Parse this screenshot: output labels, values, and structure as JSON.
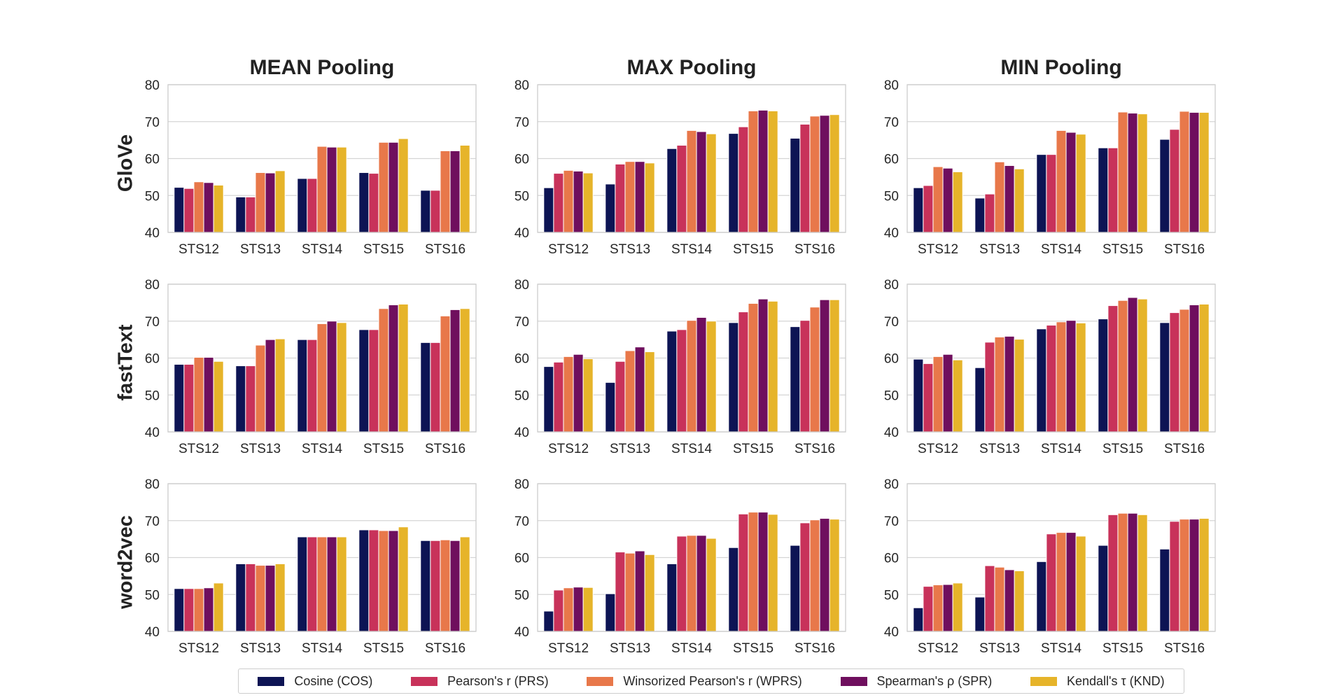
{
  "colors": {
    "COS": "#0d1454",
    "PRS": "#c8325a",
    "WPRS": "#e8784a",
    "SPR": "#6f0f5e",
    "KND": "#e6b42a"
  },
  "column_titles": [
    "MEAN Pooling",
    "MAX Pooling",
    "MIN Pooling"
  ],
  "row_labels": [
    "GloVe",
    "fastText",
    "word2vec"
  ],
  "legend": [
    {
      "key": "COS",
      "label": "Cosine (COS)"
    },
    {
      "key": "PRS",
      "label": "Pearson's r (PRS)"
    },
    {
      "key": "WPRS",
      "label": "Winsorized Pearson's r (WPRS)"
    },
    {
      "key": "SPR",
      "label": "Spearman's ρ (SPR)"
    },
    {
      "key": "KND",
      "label": "Kendall's τ (KND)"
    }
  ],
  "chart_data": [
    {
      "type": "bar",
      "row": "GloVe",
      "column": "MEAN Pooling",
      "categories": [
        "STS12",
        "STS13",
        "STS14",
        "STS15",
        "STS16"
      ],
      "yticks": [
        40,
        50,
        60,
        70,
        80
      ],
      "ylim": [
        40,
        80
      ],
      "series": [
        {
          "key": "COS",
          "name": "Cosine (COS)",
          "values": [
            52.2,
            49.6,
            54.6,
            56.2,
            51.4
          ]
        },
        {
          "key": "PRS",
          "name": "Pearson's r (PRS)",
          "values": [
            51.9,
            49.6,
            54.6,
            56.0,
            51.4
          ]
        },
        {
          "key": "WPRS",
          "name": "Winsorized Pearson's r (WPRS)",
          "values": [
            53.7,
            56.2,
            63.3,
            64.4,
            62.1
          ]
        },
        {
          "key": "SPR",
          "name": "Spearman's ρ (SPR)",
          "values": [
            53.5,
            56.1,
            63.1,
            64.4,
            62.1
          ]
        },
        {
          "key": "KND",
          "name": "Kendall's τ (KND)",
          "values": [
            52.8,
            56.7,
            63.1,
            65.4,
            63.6
          ]
        }
      ]
    },
    {
      "type": "bar",
      "row": "GloVe",
      "column": "MAX Pooling",
      "categories": [
        "STS12",
        "STS13",
        "STS14",
        "STS15",
        "STS16"
      ],
      "yticks": [
        40,
        50,
        60,
        70,
        80
      ],
      "ylim": [
        40,
        80
      ],
      "series": [
        {
          "key": "COS",
          "name": "Cosine (COS)",
          "values": [
            52.1,
            53.1,
            62.7,
            66.8,
            65.5
          ]
        },
        {
          "key": "PRS",
          "name": "Pearson's r (PRS)",
          "values": [
            56.0,
            58.5,
            63.6,
            68.6,
            69.3
          ]
        },
        {
          "key": "WPRS",
          "name": "Winsorized Pearson's r (WPRS)",
          "values": [
            56.8,
            59.2,
            67.6,
            72.9,
            71.5
          ]
        },
        {
          "key": "SPR",
          "name": "Spearman's ρ (SPR)",
          "values": [
            56.6,
            59.2,
            67.3,
            73.1,
            71.7
          ]
        },
        {
          "key": "KND",
          "name": "Kendall's τ (KND)",
          "values": [
            56.1,
            58.8,
            66.7,
            72.9,
            71.9
          ]
        }
      ]
    },
    {
      "type": "bar",
      "row": "GloVe",
      "column": "MIN Pooling",
      "categories": [
        "STS12",
        "STS13",
        "STS14",
        "STS15",
        "STS16"
      ],
      "yticks": [
        40,
        50,
        60,
        70,
        80
      ],
      "ylim": [
        40,
        80
      ],
      "series": [
        {
          "key": "COS",
          "name": "Cosine (COS)",
          "values": [
            52.1,
            49.3,
            61.1,
            62.9,
            65.2
          ]
        },
        {
          "key": "PRS",
          "name": "Pearson's r (PRS)",
          "values": [
            52.7,
            50.4,
            61.1,
            62.9,
            67.9
          ]
        },
        {
          "key": "WPRS",
          "name": "Winsorized Pearson's r (WPRS)",
          "values": [
            57.8,
            59.1,
            67.6,
            72.6,
            72.8
          ]
        },
        {
          "key": "SPR",
          "name": "Spearman's ρ (SPR)",
          "values": [
            57.4,
            58.1,
            67.1,
            72.3,
            72.5
          ]
        },
        {
          "key": "KND",
          "name": "Kendall's τ (KND)",
          "values": [
            56.4,
            57.2,
            66.6,
            72.1,
            72.5
          ]
        }
      ]
    },
    {
      "type": "bar",
      "row": "fastText",
      "column": "MEAN Pooling",
      "categories": [
        "STS12",
        "STS13",
        "STS14",
        "STS15",
        "STS16"
      ],
      "yticks": [
        40,
        50,
        60,
        70,
        80
      ],
      "ylim": [
        40,
        80
      ],
      "series": [
        {
          "key": "COS",
          "name": "Cosine (COS)",
          "values": [
            58.3,
            57.9,
            65.0,
            67.7,
            64.2
          ]
        },
        {
          "key": "PRS",
          "name": "Pearson's r (PRS)",
          "values": [
            58.3,
            57.9,
            65.0,
            67.7,
            64.2
          ]
        },
        {
          "key": "WPRS",
          "name": "Winsorized Pearson's r (WPRS)",
          "values": [
            60.2,
            63.5,
            69.3,
            73.4,
            71.4
          ]
        },
        {
          "key": "SPR",
          "name": "Spearman's ρ (SPR)",
          "values": [
            60.2,
            65.0,
            70.0,
            74.4,
            73.1
          ]
        },
        {
          "key": "KND",
          "name": "Kendall's τ (KND)",
          "values": [
            59.1,
            65.2,
            69.6,
            74.6,
            73.4
          ]
        }
      ]
    },
    {
      "type": "bar",
      "row": "fastText",
      "column": "MAX Pooling",
      "categories": [
        "STS12",
        "STS13",
        "STS14",
        "STS15",
        "STS16"
      ],
      "yticks": [
        40,
        50,
        60,
        70,
        80
      ],
      "ylim": [
        40,
        80
      ],
      "series": [
        {
          "key": "COS",
          "name": "Cosine (COS)",
          "values": [
            57.7,
            53.4,
            67.3,
            69.6,
            68.5
          ]
        },
        {
          "key": "PRS",
          "name": "Pearson's r (PRS)",
          "values": [
            58.9,
            59.1,
            67.7,
            72.5,
            70.2
          ]
        },
        {
          "key": "WPRS",
          "name": "Winsorized Pearson's r (WPRS)",
          "values": [
            60.4,
            62.0,
            70.2,
            74.8,
            73.8
          ]
        },
        {
          "key": "SPR",
          "name": "Spearman's ρ (SPR)",
          "values": [
            61.0,
            63.0,
            71.0,
            76.0,
            75.8
          ]
        },
        {
          "key": "KND",
          "name": "Kendall's τ (KND)",
          "values": [
            59.8,
            61.7,
            70.0,
            75.4,
            75.8
          ]
        }
      ]
    },
    {
      "type": "bar",
      "row": "fastText",
      "column": "MIN Pooling",
      "categories": [
        "STS12",
        "STS13",
        "STS14",
        "STS15",
        "STS16"
      ],
      "yticks": [
        40,
        50,
        60,
        70,
        80
      ],
      "ylim": [
        40,
        80
      ],
      "series": [
        {
          "key": "COS",
          "name": "Cosine (COS)",
          "values": [
            59.7,
            57.4,
            67.9,
            70.6,
            69.6
          ]
        },
        {
          "key": "PRS",
          "name": "Pearson's r (PRS)",
          "values": [
            58.5,
            64.3,
            68.9,
            74.2,
            72.3
          ]
        },
        {
          "key": "WPRS",
          "name": "Winsorized Pearson's r (WPRS)",
          "values": [
            60.4,
            65.7,
            69.8,
            75.6,
            73.2
          ]
        },
        {
          "key": "SPR",
          "name": "Spearman's ρ (SPR)",
          "values": [
            61.0,
            65.9,
            70.2,
            76.4,
            74.4
          ]
        },
        {
          "key": "KND",
          "name": "Kendall's τ (KND)",
          "values": [
            59.5,
            65.1,
            69.5,
            76.0,
            74.6
          ]
        }
      ]
    },
    {
      "type": "bar",
      "row": "word2vec",
      "column": "MEAN Pooling",
      "categories": [
        "STS12",
        "STS13",
        "STS14",
        "STS15",
        "STS16"
      ],
      "yticks": [
        40,
        50,
        60,
        70,
        80
      ],
      "ylim": [
        40,
        80
      ],
      "series": [
        {
          "key": "COS",
          "name": "Cosine (COS)",
          "values": [
            51.6,
            58.3,
            65.6,
            67.5,
            64.6
          ]
        },
        {
          "key": "PRS",
          "name": "Pearson's r (PRS)",
          "values": [
            51.6,
            58.3,
            65.6,
            67.5,
            64.6
          ]
        },
        {
          "key": "WPRS",
          "name": "Winsorized Pearson's r (WPRS)",
          "values": [
            51.6,
            57.9,
            65.6,
            67.3,
            64.8
          ]
        },
        {
          "key": "SPR",
          "name": "Spearman's ρ (SPR)",
          "values": [
            51.8,
            57.9,
            65.6,
            67.3,
            64.6
          ]
        },
        {
          "key": "KND",
          "name": "Kendall's τ (KND)",
          "values": [
            53.1,
            58.3,
            65.6,
            68.3,
            65.6
          ]
        }
      ]
    },
    {
      "type": "bar",
      "row": "word2vec",
      "column": "MAX Pooling",
      "categories": [
        "STS12",
        "STS13",
        "STS14",
        "STS15",
        "STS16"
      ],
      "yticks": [
        40,
        50,
        60,
        70,
        80
      ],
      "ylim": [
        40,
        80
      ],
      "series": [
        {
          "key": "COS",
          "name": "Cosine (COS)",
          "values": [
            45.5,
            50.2,
            58.3,
            62.7,
            63.3
          ]
        },
        {
          "key": "PRS",
          "name": "Pearson's r (PRS)",
          "values": [
            51.2,
            61.5,
            65.8,
            71.8,
            69.4
          ]
        },
        {
          "key": "WPRS",
          "name": "Winsorized Pearson's r (WPRS)",
          "values": [
            51.8,
            61.2,
            66.0,
            72.3,
            70.2
          ]
        },
        {
          "key": "SPR",
          "name": "Spearman's ρ (SPR)",
          "values": [
            52.0,
            61.8,
            66.0,
            72.3,
            70.6
          ]
        },
        {
          "key": "KND",
          "name": "Kendall's τ (KND)",
          "values": [
            51.9,
            60.8,
            65.2,
            71.7,
            70.4
          ]
        }
      ]
    },
    {
      "type": "bar",
      "row": "word2vec",
      "column": "MIN Pooling",
      "categories": [
        "STS12",
        "STS13",
        "STS14",
        "STS15",
        "STS16"
      ],
      "yticks": [
        40,
        50,
        60,
        70,
        80
      ],
      "ylim": [
        40,
        80
      ],
      "series": [
        {
          "key": "COS",
          "name": "Cosine (COS)",
          "values": [
            46.4,
            49.3,
            58.9,
            63.3,
            62.3
          ]
        },
        {
          "key": "PRS",
          "name": "Pearson's r (PRS)",
          "values": [
            52.2,
            57.8,
            66.4,
            71.6,
            69.8
          ]
        },
        {
          "key": "WPRS",
          "name": "Winsorized Pearson's r (WPRS)",
          "values": [
            52.6,
            57.4,
            66.8,
            72.0,
            70.4
          ]
        },
        {
          "key": "SPR",
          "name": "Spearman's ρ (SPR)",
          "values": [
            52.7,
            56.7,
            66.8,
            72.0,
            70.4
          ]
        },
        {
          "key": "KND",
          "name": "Kendall's τ (KND)",
          "values": [
            53.1,
            56.4,
            65.8,
            71.6,
            70.6
          ]
        }
      ]
    }
  ]
}
